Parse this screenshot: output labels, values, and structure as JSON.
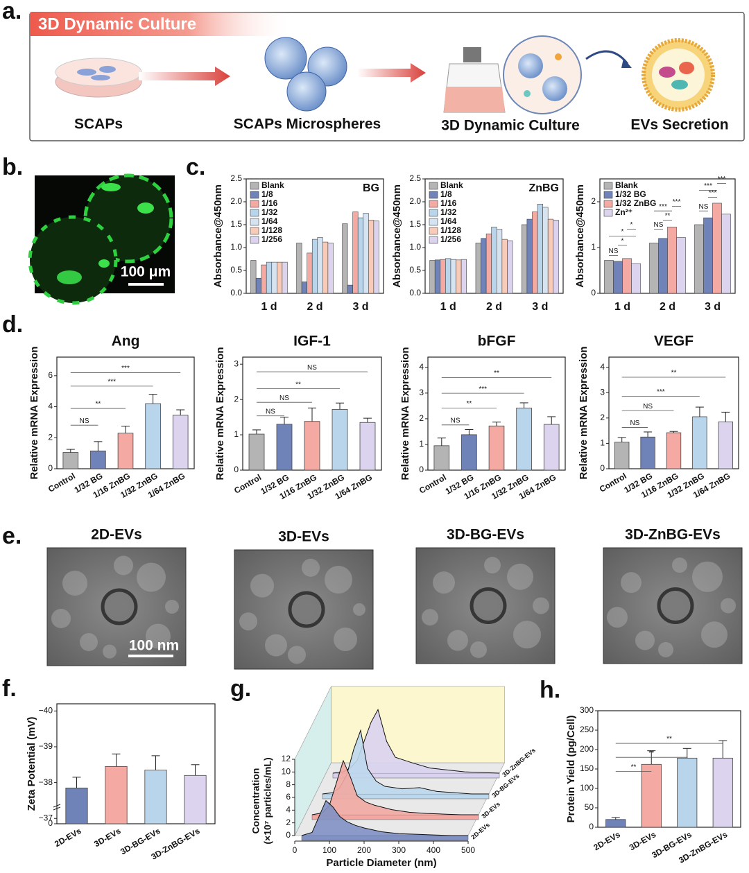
{
  "figure": {
    "panel_labels": [
      "a.",
      "b.",
      "c.",
      "d.",
      "e.",
      "f.",
      "g.",
      "h."
    ],
    "schematic": {
      "banner": "3D Dynamic Culture",
      "steps": [
        "SCAPs",
        "SCAPs Microspheres",
        "3D Dynamic Culture",
        "EVs Secretion"
      ]
    },
    "micrograph": {
      "scale_bar": "100 μm"
    },
    "tem": {
      "titles": [
        "2D-EVs",
        "3D-EVs",
        "3D-BG-EVs",
        "3D-ZnBG-EVs"
      ],
      "scale_bar": "100 nm"
    }
  },
  "chart_data": [
    {
      "type": "grouped_bar",
      "ylabel": "Absorbance@450nm",
      "annotation": "BG",
      "categories": [
        "1 d",
        "2 d",
        "3 d"
      ],
      "series": [
        {
          "name": "Blank",
          "color": "#b4b4b4",
          "values": [
            0.72,
            1.1,
            1.52
          ]
        },
        {
          "name": "1/8",
          "color": "#6f83b8",
          "values": [
            0.33,
            0.25,
            0.18
          ]
        },
        {
          "name": "1/16",
          "color": "#f4aaa2",
          "values": [
            0.62,
            0.88,
            1.78
          ]
        },
        {
          "name": "1/32",
          "color": "#b9d5ec",
          "values": [
            0.68,
            1.18,
            1.65
          ]
        },
        {
          "name": "1/64",
          "color": "#d6e4f2",
          "values": [
            0.68,
            1.22,
            1.75
          ]
        },
        {
          "name": "1/128",
          "color": "#f7cbb8",
          "values": [
            0.68,
            1.12,
            1.6
          ]
        },
        {
          "name": "1/256",
          "color": "#dcd3ee",
          "values": [
            0.68,
            1.1,
            1.58
          ]
        }
      ],
      "ylim": [
        0,
        2.5
      ],
      "yticks": [
        {
          "value": 0,
          "label": "0.0"
        },
        0.5,
        {
          "value": 1,
          "label": "1.0"
        },
        1.5,
        {
          "value": 2,
          "label": "2.0"
        },
        2.5
      ]
    },
    {
      "type": "grouped_bar",
      "ylabel": "Absorbance@450nm",
      "annotation": "ZnBG",
      "categories": [
        "1 d",
        "2 d",
        "3 d"
      ],
      "series": [
        {
          "name": "Blank",
          "color": "#b4b4b4",
          "values": [
            0.72,
            1.1,
            1.5
          ]
        },
        {
          "name": "1/8",
          "color": "#6f83b8",
          "values": [
            0.73,
            1.2,
            1.62
          ]
        },
        {
          "name": "1/16",
          "color": "#f4aaa2",
          "values": [
            0.74,
            1.3,
            1.78
          ]
        },
        {
          "name": "1/32",
          "color": "#b9d5ec",
          "values": [
            0.76,
            1.45,
            1.95
          ]
        },
        {
          "name": "1/64",
          "color": "#d6e4f2",
          "values": [
            0.74,
            1.4,
            1.88
          ]
        },
        {
          "name": "1/128",
          "color": "#f7cbb8",
          "values": [
            0.73,
            1.18,
            1.62
          ]
        },
        {
          "name": "1/256",
          "color": "#dcd3ee",
          "values": [
            0.74,
            1.15,
            1.6
          ]
        }
      ],
      "ylim": [
        0,
        2.5
      ],
      "yticks": [
        {
          "value": 0,
          "label": "0.0"
        },
        0.5,
        {
          "value": 1,
          "label": "1.0"
        },
        1.5,
        {
          "value": 2,
          "label": "2.0"
        },
        2.5
      ]
    },
    {
      "type": "grouped_bar",
      "ylabel": "Absorbance@450nm",
      "categories": [
        "1 d",
        "2 d",
        "3 d"
      ],
      "series": [
        {
          "name": "Blank",
          "color": "#b4b4b4",
          "values": [
            0.72,
            1.1,
            1.5
          ]
        },
        {
          "name": "1/32 BG",
          "color": "#6f83b8",
          "values": [
            0.7,
            1.2,
            1.65
          ]
        },
        {
          "name": "1/32 ZnBG",
          "color": "#f4aaa2",
          "values": [
            0.76,
            1.45,
            1.97
          ]
        },
        {
          "name": "Zn²⁺",
          "color": "#dcd3ee",
          "values": [
            0.65,
            1.22,
            1.73
          ]
        }
      ],
      "ylim": [
        0,
        2.5
      ],
      "yticks": [
        0,
        1,
        2
      ],
      "significance": [
        "NS",
        "*",
        "*",
        "*",
        "NS",
        "**",
        "***",
        "***",
        "NS",
        "***",
        "***",
        "***"
      ]
    },
    {
      "type": "bar",
      "title": "Ang",
      "ylabel": "Relative mRNA Expression",
      "categories": [
        "Control",
        "1/32 BG",
        "1/16 ZnBG",
        "1/32 ZnBG",
        "1/64 ZnBG"
      ],
      "colors": [
        "#b4b4b4",
        "#6f83b8",
        "#f4aaa2",
        "#b9d5ec",
        "#dcd3ee"
      ],
      "values": [
        1.05,
        1.15,
        2.3,
        4.2,
        3.45
      ],
      "errors": [
        0.2,
        0.6,
        0.45,
        0.6,
        0.35
      ],
      "ylim": [
        0,
        7.2
      ],
      "yticks": [
        0,
        2,
        4,
        6
      ],
      "significance": [
        "NS",
        "**",
        "***",
        "***"
      ]
    },
    {
      "type": "bar",
      "title": "IGF-1",
      "ylabel": "Relative mRNA Expression",
      "categories": [
        "Control",
        "1/32 BG",
        "1/16 ZnBG",
        "1/32 ZnBG",
        "1/64 ZnBG"
      ],
      "colors": [
        "#b4b4b4",
        "#6f83b8",
        "#f4aaa2",
        "#b9d5ec",
        "#dcd3ee"
      ],
      "values": [
        1.02,
        1.3,
        1.38,
        1.72,
        1.35
      ],
      "errors": [
        0.12,
        0.2,
        0.38,
        0.18,
        0.12
      ],
      "ylim": [
        0,
        3.2
      ],
      "yticks": [
        0,
        1,
        2,
        3
      ],
      "significance": [
        "NS",
        "NS",
        "**",
        "NS"
      ]
    },
    {
      "type": "bar",
      "title": "bFGF",
      "ylabel": "Relative mRNA Expression",
      "categories": [
        "Control",
        "1/32 BG",
        "1/16 ZnBG",
        "1/32 ZnBG",
        "1/64 ZnBG"
      ],
      "colors": [
        "#b4b4b4",
        "#6f83b8",
        "#f4aaa2",
        "#b9d5ec",
        "#dcd3ee"
      ],
      "values": [
        0.95,
        1.38,
        1.72,
        2.42,
        1.78
      ],
      "errors": [
        0.3,
        0.2,
        0.15,
        0.2,
        0.3
      ],
      "ylim": [
        0,
        4.4
      ],
      "yticks": [
        0,
        1,
        2,
        3,
        4
      ],
      "significance": [
        "NS",
        "**",
        "***",
        "**"
      ]
    },
    {
      "type": "bar",
      "title": "VEGF",
      "ylabel": "Relative mRNA Expression",
      "categories": [
        "Control",
        "1/32 BG",
        "1/16 ZnBG",
        "1/32 ZnBG",
        "1/64 ZnBG"
      ],
      "colors": [
        "#b4b4b4",
        "#6f83b8",
        "#f4aaa2",
        "#b9d5ec",
        "#dcd3ee"
      ],
      "values": [
        1.05,
        1.25,
        1.42,
        2.05,
        1.85
      ],
      "errors": [
        0.18,
        0.2,
        0.05,
        0.38,
        0.38
      ],
      "ylim": [
        0,
        4.4
      ],
      "yticks": [
        0,
        1,
        2,
        3,
        4
      ],
      "significance": [
        "NS",
        "NS",
        "***",
        "**"
      ]
    },
    {
      "type": "bar",
      "ylabel": "Zeta Potential (mV)",
      "categories": [
        "2D-EVs",
        "3D-EVs",
        "3D-BG-EVs",
        "3D-ZnBG-EVs"
      ],
      "colors": [
        "#6f83b8",
        "#f4aaa2",
        "#b9d5ec",
        "#dcd3ee"
      ],
      "values": [
        -37.85,
        -38.45,
        -38.35,
        -38.2
      ],
      "errors": [
        0.3,
        0.35,
        0.4,
        0.3
      ],
      "ylim": [
        -36.85,
        -40.2
      ],
      "yticks": [
        {
          "value": -40,
          "label": "−40"
        },
        {
          "value": -39,
          "label": "−39"
        },
        {
          "value": -38,
          "label": "−38"
        },
        {
          "value": -37,
          "label": "−37"
        }
      ],
      "axis_break": {
        "value": 0,
        "label": "0"
      }
    },
    {
      "type": "ridge",
      "xlabel": "Particle Diameter (nm)",
      "ylabel": [
        "Concentration",
        "(×10⁷ particles/mL)"
      ],
      "x": [
        20,
        50,
        70,
        90,
        110,
        130,
        150,
        175,
        200,
        250,
        300,
        350,
        400,
        450,
        500
      ],
      "series": [
        {
          "name": "2D-EVs",
          "color": "#8191c4",
          "values": [
            0,
            0.5,
            3,
            5.5,
            4.5,
            3,
            2.2,
            1.6,
            1.2,
            0.6,
            0.3,
            0.2,
            0.1,
            0,
            0
          ]
        },
        {
          "name": "3D-EVs",
          "color": "#f2a8a2",
          "values": [
            0,
            0.3,
            1.5,
            5,
            8.5,
            6,
            3,
            2,
            1.5,
            0.8,
            0.4,
            0.2,
            0.1,
            0,
            0
          ]
        },
        {
          "name": "3D-BG-EVs",
          "color": "#bcd7ec",
          "values": [
            0,
            0.2,
            1,
            3,
            7,
            10,
            4,
            2,
            1.2,
            0.8,
            1,
            0.4,
            0.2,
            0,
            0
          ]
        },
        {
          "name": "3D-ZnBG-EVs",
          "color": "#d9d2ee",
          "values": [
            0,
            0.2,
            0.8,
            2,
            5,
            8,
            10,
            5,
            2.5,
            1.6,
            0.8,
            0.5,
            0.2,
            0.1,
            0
          ]
        }
      ],
      "xlim": [
        0,
        500
      ],
      "xticks": [
        0,
        100,
        200,
        300,
        400,
        500
      ],
      "ylim": [
        0,
        12
      ],
      "yticks": [
        0,
        2,
        4,
        6,
        8,
        10,
        12
      ]
    },
    {
      "type": "bar",
      "ylabel": "Protein Yield (pg/Cell)",
      "categories": [
        "2D-EVs",
        "3D-EVs",
        "3D-BG-EVs",
        "3D-ZnBG-EVs"
      ],
      "colors": [
        "#6f83b8",
        "#f4aaa2",
        "#b9d5ec",
        "#dcd3ee"
      ],
      "values": [
        20,
        162,
        178,
        178
      ],
      "errors": [
        5,
        35,
        25,
        45
      ],
      "ylim": [
        0,
        300
      ],
      "yticks": [
        0,
        50,
        100,
        150,
        200,
        250,
        300
      ],
      "significance": [
        "**",
        "**",
        "**"
      ]
    }
  ]
}
